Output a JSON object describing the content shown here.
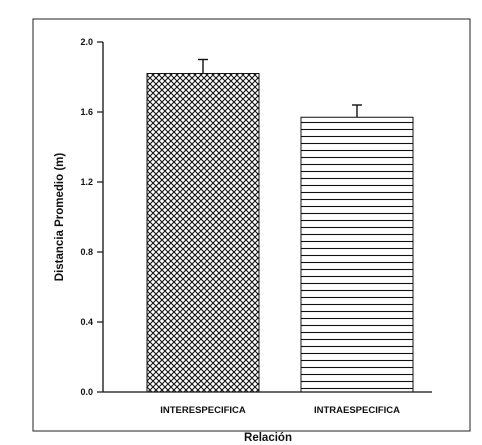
{
  "chart_data": {
    "type": "bar",
    "categories": [
      "INTERESPECIFICA",
      "INTRAESPECIFICA"
    ],
    "values": [
      1.82,
      1.57
    ],
    "errors": [
      0.08,
      0.07
    ],
    "xlabel": "Relación",
    "ylabel": "Distancia Promedio (m)",
    "ylim": [
      0.0,
      2.0
    ],
    "yticks": [
      "0.0",
      "0.4",
      "0.8",
      "1.2",
      "1.6",
      "2.0"
    ],
    "fills": [
      "crosshatch",
      "horizontal-lines"
    ],
    "bar_color": "#111111",
    "grid": false
  }
}
